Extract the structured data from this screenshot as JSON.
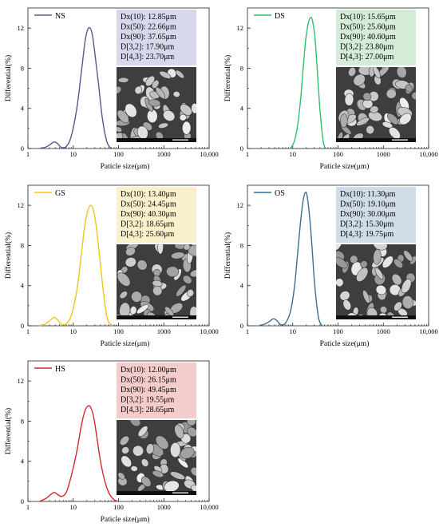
{
  "chart_data": [
    {
      "type": "line",
      "xlabel": "Paticle size(μm)",
      "ylabel": "Differential(%)",
      "xscale": "log",
      "xlim": [
        1,
        10000
      ],
      "ylim": [
        0,
        14
      ],
      "xticks": [
        1,
        10,
        100,
        1000,
        10000
      ],
      "xtick_labels": [
        "1",
        "10",
        "100",
        "1000",
        "10,000"
      ],
      "yticks": [
        0,
        4,
        8,
        12
      ],
      "ytick_labels": [
        "0",
        "4",
        "8",
        "12"
      ],
      "legend_position": "top-left",
      "series": [
        {
          "name": "NS",
          "color": "#555b8e",
          "x": [
            1.8,
            2.5,
            3.2,
            3.8,
            4.5,
            5.5,
            7,
            9,
            12,
            15,
            18,
            20,
            22.66,
            26,
            30,
            36,
            44,
            55,
            68
          ],
          "y": [
            0,
            0.15,
            0.45,
            0.65,
            0.5,
            0.1,
            0.2,
            1.2,
            4,
            7.5,
            10.5,
            11.6,
            12.05,
            11.5,
            9.5,
            6.5,
            3,
            0.7,
            0
          ]
        }
      ],
      "info_box": {
        "color": "#d8d8ec",
        "lines": [
          "Dx(10): 12.85μm",
          "Dx(50): 22.66μm",
          "Dx(90): 37.65μm",
          "D[3,2]: 17.90μm",
          "D[4,3]: 23.70μm"
        ]
      },
      "sem_image": "sem-granules"
    },
    {
      "type": "line",
      "xlabel": "Paticle size(μm)",
      "ylabel": "Differential(%)",
      "xscale": "log",
      "xlim": [
        1,
        10000
      ],
      "ylim": [
        0,
        14
      ],
      "xticks": [
        1,
        10,
        100,
        1000,
        10000
      ],
      "xtick_labels": [
        "1",
        "10",
        "100",
        "1000",
        "10,000"
      ],
      "yticks": [
        0,
        4,
        8,
        12
      ],
      "ytick_labels": [
        "0",
        "4",
        "8",
        "12"
      ],
      "legend_position": "top-left",
      "series": [
        {
          "name": "DS",
          "color": "#2fbf71",
          "x": [
            9,
            11,
            13,
            15,
            17,
            19,
            21,
            23,
            25.6,
            28,
            31,
            34,
            37,
            40,
            44,
            48,
            53
          ],
          "y": [
            0,
            0.8,
            2.5,
            5,
            8,
            10.5,
            12,
            12.8,
            13.05,
            12.5,
            11,
            8.5,
            6,
            3.8,
            1.8,
            0.5,
            0
          ]
        }
      ],
      "info_box": {
        "color": "#d4ecd8",
        "lines": [
          "Dx(10): 15.65μm",
          "Dx(50): 25.60μm",
          "Dx(90): 40.60μm",
          "D[3,2]: 23.80μm",
          "D[4,3]: 27.00μm"
        ]
      },
      "sem_image": "sem-granules"
    },
    {
      "type": "line",
      "xlabel": "Paticle size(μm)",
      "ylabel": "Differential(%)",
      "xscale": "log",
      "xlim": [
        1,
        10000
      ],
      "ylim": [
        0,
        14
      ],
      "xticks": [
        1,
        10,
        100,
        1000,
        10000
      ],
      "xtick_labels": [
        "1",
        "10",
        "100",
        "1000",
        "10,000"
      ],
      "yticks": [
        0,
        4,
        8,
        12
      ],
      "ytick_labels": [
        "0",
        "4",
        "8",
        "12"
      ],
      "legend_position": "top-left",
      "series": [
        {
          "name": "GS",
          "color": "#f0c419",
          "x": [
            1.8,
            2.5,
            3.2,
            3.8,
            4.5,
            5.5,
            7,
            9,
            12,
            15,
            18,
            21,
            24.45,
            28,
            32,
            38,
            46,
            56,
            70
          ],
          "y": [
            0,
            0.2,
            0.6,
            0.85,
            0.6,
            0.15,
            0.2,
            1,
            3.5,
            7,
            10,
            11.5,
            12,
            11.5,
            10,
            7,
            3.5,
            0.8,
            0
          ]
        }
      ],
      "info_box": {
        "color": "#faf0cc",
        "lines": [
          "Dx(10): 13.40μm",
          "Dx(50): 24.45μm",
          "Dx(90): 40.30μm",
          "D[3,2]: 18.65μm",
          "D[4,3]: 25.60μm"
        ]
      },
      "sem_image": "sem-granules"
    },
    {
      "type": "line",
      "xlabel": "Paticle size(μm)",
      "ylabel": "Differential(%)",
      "xscale": "log",
      "xlim": [
        1,
        10000
      ],
      "ylim": [
        0,
        14
      ],
      "xticks": [
        1,
        10,
        100,
        1000,
        10000
      ],
      "xtick_labels": [
        "1",
        "10",
        "100",
        "1000",
        "10,000"
      ],
      "yticks": [
        0,
        4,
        8,
        12
      ],
      "ytick_labels": [
        "0",
        "4",
        "8",
        "12"
      ],
      "legend_position": "top-left",
      "series": [
        {
          "name": "OS",
          "color": "#3a6f94",
          "x": [
            1.8,
            2.5,
            3.2,
            3.8,
            4.5,
            5.5,
            7,
            9,
            11,
            13,
            15,
            17,
            19.1,
            21,
            24,
            27,
            30,
            34,
            38,
            44
          ],
          "y": [
            0,
            0.2,
            0.5,
            0.7,
            0.5,
            0.1,
            0.3,
            1.5,
            4,
            7.5,
            10.5,
            12.5,
            13.3,
            12.8,
            10.5,
            7.5,
            4.5,
            2,
            0.6,
            0
          ]
        }
      ],
      "info_box": {
        "color": "#d0dde8",
        "lines": [
          "Dx(10): 11.30μm",
          "Dx(50): 19.10μm",
          "Dx(90): 30.00μm",
          "D[3,2]: 15.30μm",
          "D[4,3]: 19.75μm"
        ]
      },
      "sem_image": "sem-granules"
    },
    {
      "type": "line",
      "xlabel": "Paticle size(μm)",
      "ylabel": "Differential(%)",
      "xscale": "log",
      "xlim": [
        1,
        10000
      ],
      "ylim": [
        0,
        14
      ],
      "xticks": [
        1,
        10,
        100,
        1000,
        10000
      ],
      "xtick_labels": [
        "1",
        "10",
        "100",
        "1000",
        "10,000"
      ],
      "yticks": [
        0,
        4,
        8,
        12
      ],
      "ytick_labels": [
        "0",
        "4",
        "8",
        "12"
      ],
      "legend_position": "top-left",
      "series": [
        {
          "name": "HS",
          "color": "#d42a2a",
          "x": [
            1.8,
            2.5,
            3.2,
            3.8,
            4.5,
            5.5,
            7,
            9,
            12,
            15,
            18,
            21,
            24,
            28,
            33,
            40,
            50,
            62,
            78,
            95
          ],
          "y": [
            0,
            0.3,
            0.7,
            0.9,
            0.7,
            0.5,
            0.9,
            2.5,
            5,
            7.5,
            9,
            9.5,
            9.4,
            8.5,
            6.5,
            4,
            2,
            0.8,
            0.2,
            0
          ]
        }
      ],
      "info_box": {
        "color": "#f5cccc",
        "lines": [
          "Dx(10): 12.00μm",
          "Dx(50): 26.15μm",
          "Dx(90): 49.45μm",
          "D[3,2]: 19.55μm",
          "D[4,3]: 28.65μm"
        ]
      },
      "sem_image": "sem-granules"
    }
  ]
}
